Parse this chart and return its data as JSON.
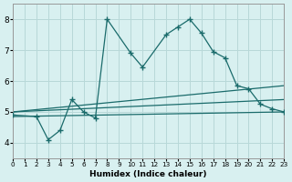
{
  "xlabel": "Humidex (Indice chaleur)",
  "bg_color": "#d8f0f0",
  "line_color": "#1a6b6b",
  "grid_color": "#b8d8d8",
  "xlim": [
    0,
    23
  ],
  "ylim": [
    3.5,
    8.5
  ],
  "yticks": [
    4,
    5,
    6,
    7,
    8
  ],
  "xticks": [
    0,
    1,
    2,
    3,
    4,
    5,
    6,
    7,
    8,
    9,
    10,
    11,
    12,
    13,
    14,
    15,
    16,
    17,
    18,
    19,
    20,
    21,
    22,
    23
  ],
  "line1_x": [
    0,
    2,
    3,
    4,
    5,
    6,
    7,
    8,
    10,
    11,
    13,
    14,
    15,
    16,
    17,
    18,
    19,
    20,
    21,
    22,
    23
  ],
  "line1_y": [
    4.9,
    4.85,
    4.1,
    4.4,
    5.4,
    5.0,
    4.8,
    8.0,
    6.9,
    6.45,
    7.5,
    7.75,
    8.0,
    7.55,
    6.95,
    6.75,
    5.85,
    5.75,
    5.25,
    5.1,
    5.0
  ],
  "line2_x": [
    0,
    23
  ],
  "line2_y": [
    5.0,
    5.4
  ],
  "line3_x": [
    0,
    23
  ],
  "line3_y": [
    5.0,
    5.85
  ],
  "line4_x": [
    0,
    23
  ],
  "line4_y": [
    4.85,
    5.0
  ]
}
